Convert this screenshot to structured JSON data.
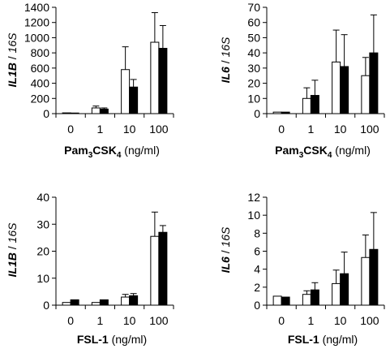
{
  "chart_data": [
    {
      "type": "bar",
      "ylabel_gene": "IL1B",
      "ylabel_sep": " / ",
      "ylabel_ref": "16S",
      "xlabel_main": "Pam",
      "xlabel_sub1": "3",
      "xlabel_mid": "CSK",
      "xlabel_sub2": "4",
      "xlabel_unit": " (ng/ml)",
      "categories": [
        "0",
        "1",
        "10",
        "100"
      ],
      "ylim": [
        0,
        1400
      ],
      "yticks": [
        "0",
        "200",
        "400",
        "600",
        "800",
        "1000",
        "1200",
        "1400"
      ],
      "series": [
        {
          "fill": "#ffffff",
          "values": [
            10,
            75,
            580,
            940
          ],
          "err": [
            0,
            25,
            300,
            390
          ]
        },
        {
          "fill": "#000000",
          "values": [
            8,
            60,
            350,
            860
          ],
          "err": [
            0,
            15,
            100,
            300
          ]
        }
      ]
    },
    {
      "type": "bar",
      "ylabel_gene": "IL6",
      "ylabel_sep": " / ",
      "ylabel_ref": "16S",
      "xlabel_main": "Pam",
      "xlabel_sub1": "3",
      "xlabel_mid": "CSK",
      "xlabel_sub2": "4",
      "xlabel_unit": " (ng/ml)",
      "categories": [
        "0",
        "1",
        "10",
        "100"
      ],
      "ylim": [
        0,
        70
      ],
      "yticks": [
        "0",
        "10",
        "20",
        "30",
        "40",
        "50",
        "60",
        "70"
      ],
      "series": [
        {
          "fill": "#ffffff",
          "values": [
            1,
            10,
            34,
            25
          ],
          "err": [
            0,
            7,
            21,
            12
          ]
        },
        {
          "fill": "#000000",
          "values": [
            1,
            12,
            31,
            40
          ],
          "err": [
            0,
            10,
            21,
            25
          ]
        }
      ]
    },
    {
      "type": "bar",
      "ylabel_gene": "IL1B",
      "ylabel_sep": " / ",
      "ylabel_ref": "16S",
      "xlabel_main": "FSL-1",
      "xlabel_unit": " (ng/ml)",
      "categories": [
        "0",
        "1",
        "10",
        "100"
      ],
      "ylim": [
        0,
        40
      ],
      "yticks": [
        "0",
        "10",
        "20",
        "30",
        "40"
      ],
      "series": [
        {
          "fill": "#ffffff",
          "values": [
            1,
            1,
            3,
            25.5
          ],
          "err": [
            0,
            0,
            1,
            9
          ]
        },
        {
          "fill": "#000000",
          "values": [
            2,
            2,
            3.5,
            27
          ],
          "err": [
            0,
            0,
            0.8,
            2.5
          ]
        }
      ]
    },
    {
      "type": "bar",
      "ylabel_gene": "IL6",
      "ylabel_sep": " / ",
      "ylabel_ref": "16S",
      "xlabel_main": "FSL-1",
      "xlabel_unit": " (ng/ml)",
      "categories": [
        "0",
        "1",
        "10",
        "100"
      ],
      "ylim": [
        0,
        12
      ],
      "yticks": [
        "0",
        "2",
        "4",
        "6",
        "8",
        "10",
        "12"
      ],
      "series": [
        {
          "fill": "#ffffff",
          "values": [
            1,
            1.2,
            2.4,
            5.3
          ],
          "err": [
            0,
            0.4,
            1.5,
            2.5
          ]
        },
        {
          "fill": "#000000",
          "values": [
            0.9,
            1.7,
            3.5,
            6.2
          ],
          "err": [
            0,
            0.8,
            2.4,
            4.1
          ]
        }
      ]
    }
  ]
}
